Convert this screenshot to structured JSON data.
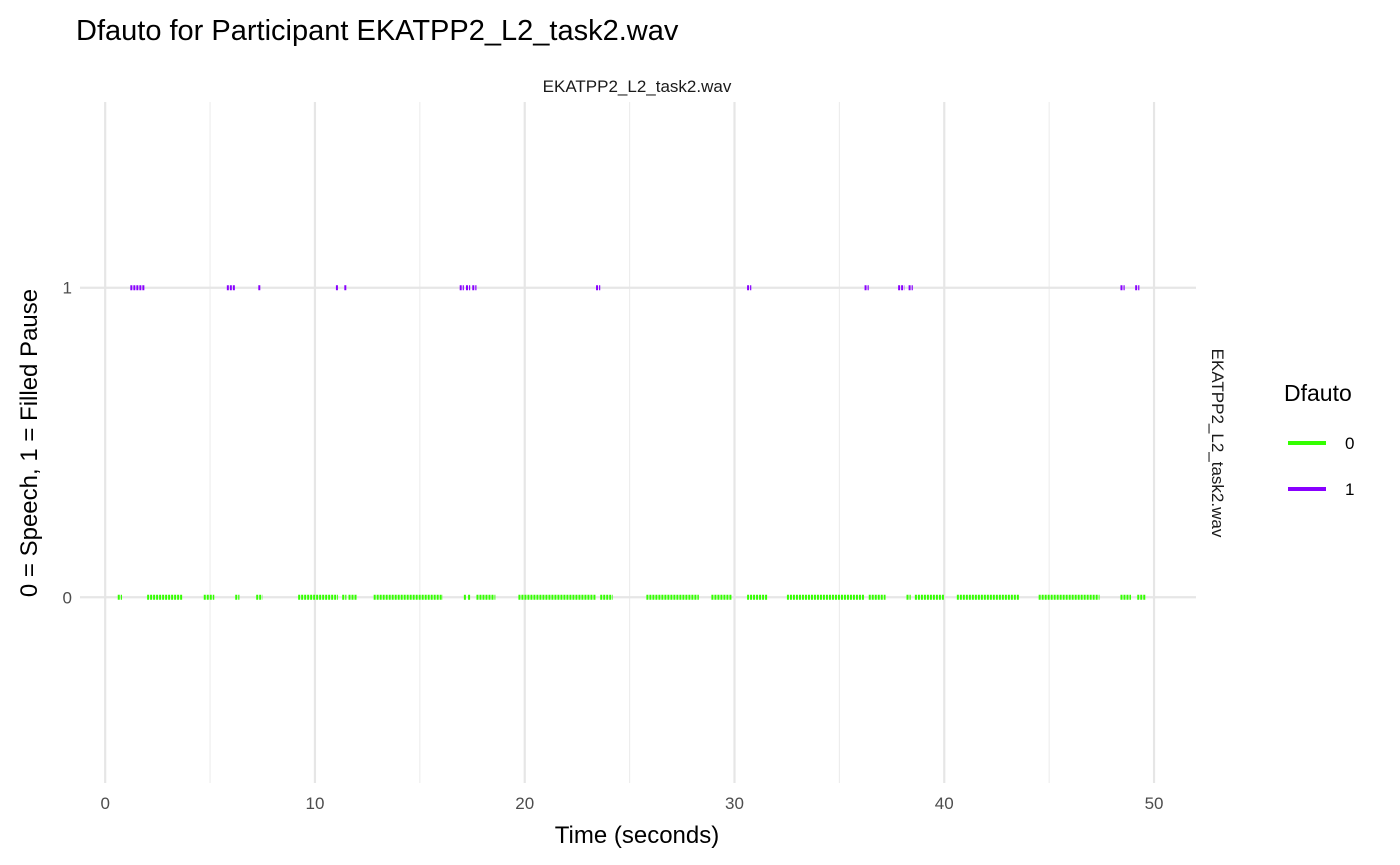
{
  "chart_data": {
    "type": "line",
    "title": "Dfauto for Participant EKATPP2_L2_task2.wav",
    "facet_top": "EKATPP2_L2_task2.wav",
    "facet_right": "EKATPP2_L2_task2.wav",
    "xlabel": "Time (seconds)",
    "ylabel": "0 = Speech, 1 = Filled Pause",
    "xlim": [
      -1.2,
      52
    ],
    "ylim": [
      -0.6,
      1.6
    ],
    "x_ticks": [
      "0",
      "10",
      "20",
      "30",
      "40",
      "50"
    ],
    "x_tick_values": [
      0,
      10,
      20,
      30,
      40,
      50
    ],
    "y_ticks": [
      "0",
      "1"
    ],
    "y_tick_values": [
      0,
      1
    ],
    "grid": true,
    "legend": {
      "title": "Dfauto",
      "position": "right",
      "entries": [
        {
          "label": "0",
          "color": "#33ff00"
        },
        {
          "label": "1",
          "color": "#8800ff"
        }
      ]
    },
    "series": [
      {
        "name": "0",
        "color": "#33ff00",
        "y": 0,
        "segments": [
          [
            0.6,
            0.8
          ],
          [
            2.0,
            3.7
          ],
          [
            4.7,
            5.2
          ],
          [
            6.2,
            6.4
          ],
          [
            7.2,
            7.5
          ],
          [
            9.2,
            11.1
          ],
          [
            11.3,
            11.5
          ],
          [
            11.6,
            12.0
          ],
          [
            12.8,
            16.1
          ],
          [
            17.1,
            17.2
          ],
          [
            17.3,
            17.4
          ],
          [
            17.7,
            18.6
          ],
          [
            19.7,
            23.4
          ],
          [
            23.6,
            24.2
          ],
          [
            25.8,
            28.3
          ],
          [
            28.9,
            29.9
          ],
          [
            30.6,
            31.6
          ],
          [
            32.5,
            36.2
          ],
          [
            36.4,
            37.2
          ],
          [
            38.2,
            38.4
          ],
          [
            38.6,
            40.0
          ],
          [
            40.6,
            43.6
          ],
          [
            44.5,
            47.4
          ],
          [
            48.4,
            48.9
          ],
          [
            49.2,
            49.6
          ]
        ]
      },
      {
        "name": "1",
        "color": "#8800ff",
        "y": 1,
        "segments": [
          [
            1.2,
            1.9
          ],
          [
            5.8,
            6.2
          ],
          [
            7.3,
            7.4
          ],
          [
            11.0,
            11.1
          ],
          [
            11.4,
            11.5
          ],
          [
            16.9,
            17.1
          ],
          [
            17.2,
            17.4
          ],
          [
            17.5,
            17.7
          ],
          [
            23.4,
            23.6
          ],
          [
            30.6,
            30.8
          ],
          [
            36.2,
            36.4
          ],
          [
            37.8,
            38.1
          ],
          [
            38.3,
            38.5
          ],
          [
            48.4,
            48.6
          ],
          [
            49.1,
            49.3
          ]
        ]
      }
    ]
  }
}
